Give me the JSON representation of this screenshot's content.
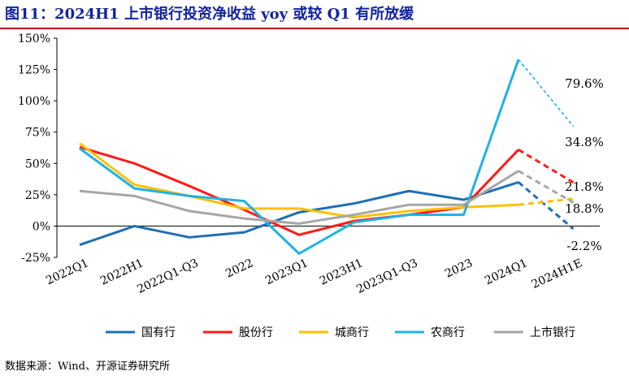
{
  "title": "图11：2024H1 上市银行投资净收益 yoy 或较 Q1 有所放缓",
  "source": "数据来源：Wind、开源证券研究所",
  "chart_data": {
    "type": "line",
    "title": "",
    "xlabel": "",
    "ylabel": "",
    "categories": [
      "2022Q1",
      "2022H1",
      "2022Q1-Q3",
      "2022",
      "2023Q1",
      "2023H1",
      "2023Q1-Q3",
      "2023",
      "2024Q1",
      "2024H1E"
    ],
    "y_ticks": [
      "150%",
      "125%",
      "100%",
      "75%",
      "50%",
      "25%",
      "0%",
      "-25%"
    ],
    "ylim": [
      -25,
      150
    ],
    "grid": false,
    "legend_position": "bottom",
    "projection_start_index": 8,
    "series": [
      {
        "name": "国有行",
        "color": "#1f6eb5",
        "values": [
          -15,
          0,
          -9,
          -5,
          11,
          18,
          28,
          21,
          35,
          -2.2
        ],
        "end_label": "-2.2%"
      },
      {
        "name": "股份行",
        "color": "#ff1a1a",
        "values": [
          63,
          50,
          32,
          13,
          -7,
          4,
          9,
          15,
          61,
          34.8
        ],
        "end_label": "34.8%"
      },
      {
        "name": "城商行",
        "color": "#ffc000",
        "values": [
          66,
          33,
          24,
          14,
          14,
          7,
          12,
          15,
          17,
          21.8
        ],
        "end_label": "21.8%"
      },
      {
        "name": "农商行",
        "color": "#1fb2e6",
        "values": [
          62,
          30,
          24,
          20,
          -22,
          3,
          9,
          9,
          133,
          79.6
        ],
        "end_label": "79.6%"
      },
      {
        "name": "上市银行",
        "color": "#a6a6a6",
        "values": [
          28,
          24,
          12,
          6,
          2,
          9,
          17,
          17,
          44,
          18.8
        ],
        "end_label": "18.8%"
      }
    ]
  }
}
